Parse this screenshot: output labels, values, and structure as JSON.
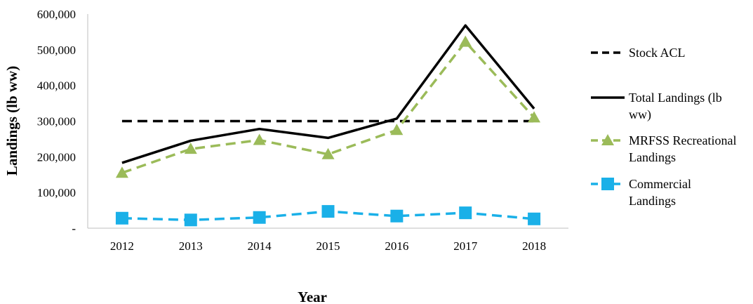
{
  "chart_data": {
    "type": "line",
    "xlabel": "Year",
    "ylabel": "Landings (lb ww)",
    "ylim": [
      0,
      600000
    ],
    "ytick_values": [
      0,
      100000,
      200000,
      300000,
      400000,
      500000,
      600000
    ],
    "ytick_labels": [
      "-",
      "100,000",
      "200,000",
      "300,000",
      "400,000",
      "500,000",
      "600,000"
    ],
    "categories": [
      "2012",
      "2013",
      "2014",
      "2015",
      "2016",
      "2017",
      "2018"
    ],
    "grid": false,
    "legend_position": "right",
    "series": [
      {
        "name": "Stock ACL",
        "values": [
          300000,
          300000,
          300000,
          300000,
          300000,
          300000,
          300000
        ],
        "color": "#000000",
        "dashed": true,
        "marker": "none"
      },
      {
        "name": "Total Landings (lb ww)",
        "values": [
          183000,
          245000,
          278000,
          253000,
          307000,
          568000,
          335000
        ],
        "color": "#000000",
        "dashed": false,
        "marker": "none"
      },
      {
        "name": "MRFSS Recreational Landings",
        "values": [
          155000,
          222000,
          247000,
          207000,
          275000,
          522000,
          310000
        ],
        "color": "#9bbb59",
        "dashed": true,
        "marker": "triangle"
      },
      {
        "name": "Commercial Landings",
        "values": [
          28000,
          23000,
          30000,
          47000,
          34000,
          43000,
          26000
        ],
        "color": "#1ab0e8",
        "dashed": true,
        "marker": "square"
      }
    ]
  }
}
